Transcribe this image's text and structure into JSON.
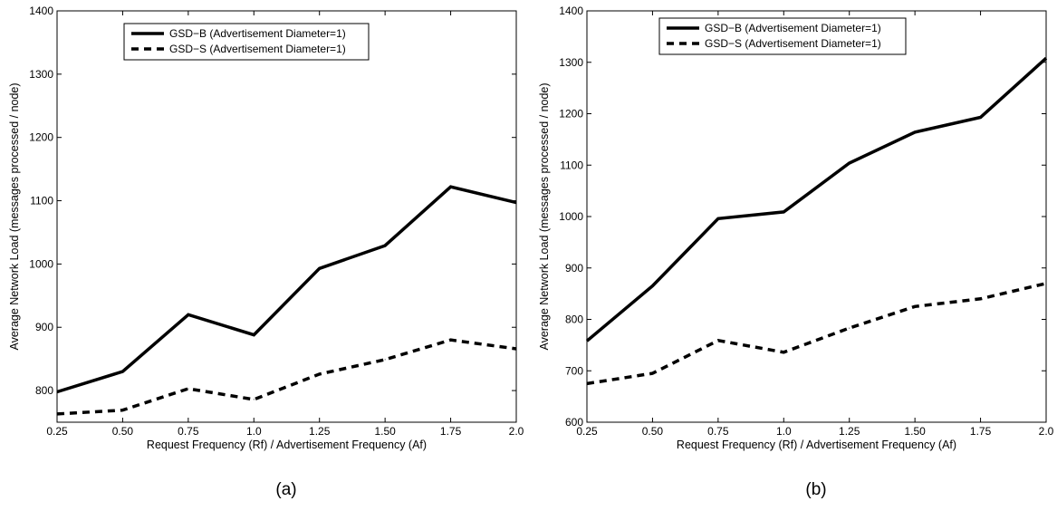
{
  "chart_data": [
    {
      "type": "line",
      "caption": "(a)",
      "xlabel": "Request Frequency (Rf) / Advertisement Frequency (Af)",
      "ylabel": "Average Network Load (messages processed / node)",
      "x": [
        0.25,
        0.5,
        0.75,
        1.0,
        1.25,
        1.5,
        1.75,
        2.0
      ],
      "xtick_labels": [
        "0.25",
        "0.50",
        "0.75",
        "1.0",
        "1.25",
        "1.50",
        "1.75",
        "2.0"
      ],
      "xlim": [
        0.25,
        2.0
      ],
      "ylim": [
        750,
        1400
      ],
      "yticks": [
        800,
        900,
        1000,
        1100,
        1200,
        1300,
        1400
      ],
      "legend_position": "top-left",
      "grid": false,
      "series": [
        {
          "name": "GSD−B (Advertisement Diameter=1)",
          "style": "solid",
          "values": [
            798,
            830,
            920,
            888,
            993,
            1029,
            1122,
            1097
          ]
        },
        {
          "name": "GSD−S (Advertisement Diameter=1)",
          "style": "dashed",
          "values": [
            763,
            769,
            803,
            786,
            826,
            849,
            880,
            866
          ]
        }
      ]
    },
    {
      "type": "line",
      "caption": "(b)",
      "xlabel": "Request Frequency (Rf) / Advertisement Frequency (Af)",
      "ylabel": "Average Network Load (messages processed / node)",
      "x": [
        0.25,
        0.5,
        0.75,
        1.0,
        1.25,
        1.5,
        1.75,
        2.0
      ],
      "xtick_labels": [
        "0.25",
        "0.50",
        "0.75",
        "1.0",
        "1.25",
        "1.50",
        "1.75",
        "2.0"
      ],
      "xlim": [
        0.25,
        2.0
      ],
      "ylim": [
        600,
        1400
      ],
      "yticks": [
        600,
        700,
        800,
        900,
        1000,
        1100,
        1200,
        1300,
        1400
      ],
      "legend_position": "top-left",
      "grid": false,
      "series": [
        {
          "name": "GSD−B (Advertisement Diameter=1)",
          "style": "solid",
          "values": [
            758,
            865,
            996,
            1009,
            1104,
            1164,
            1193,
            1308
          ]
        },
        {
          "name": "GSD−S (Advertisement Diameter=1)",
          "style": "dashed",
          "values": [
            675,
            695,
            759,
            736,
            783,
            825,
            840,
            870
          ]
        }
      ]
    }
  ]
}
